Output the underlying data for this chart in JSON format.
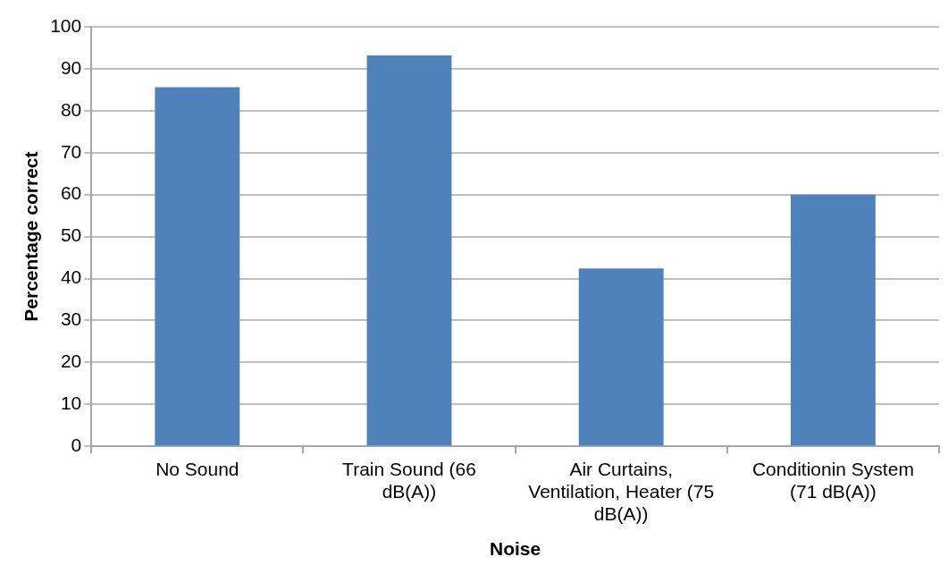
{
  "chart_data": {
    "type": "bar",
    "xlabel": "Noise",
    "ylabel": "Percentage correct",
    "categories": [
      "No Sound",
      "Train Sound (66 dB(A))",
      "Air Curtains, Ventilation, Heater (75 dB(A))",
      "Conditionin System (71 dB(A))"
    ],
    "values": [
      85.6,
      93.2,
      42.4,
      60
    ],
    "color": "#4f81bd",
    "ylim": [
      0,
      100
    ],
    "yticks": [
      0,
      10,
      20,
      30,
      40,
      50,
      60,
      70,
      80,
      90,
      100
    ],
    "grid": "y"
  }
}
